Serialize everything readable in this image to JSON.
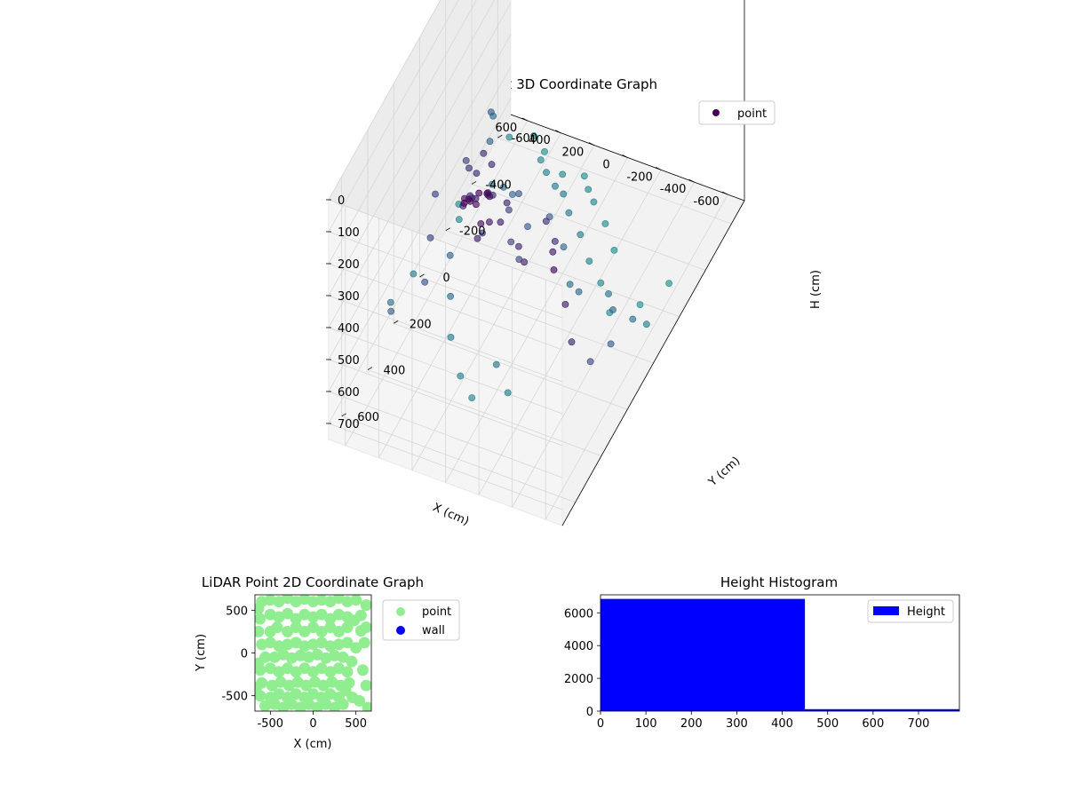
{
  "chart_data": [
    {
      "type": "scatter3d",
      "title": "LiDAR Point 3D Coordinate Graph",
      "xlabel": "X (cm)",
      "ylabel": "Y (cm)",
      "zlabel": "H (cm)",
      "xlim": [
        -700,
        700
      ],
      "ylim": [
        -700,
        700
      ],
      "zlim": [
        750,
        0
      ],
      "xticks": [
        "-600",
        "-400",
        "-200",
        "0",
        "200",
        "400",
        "600"
      ],
      "yticks": [
        "600",
        "400",
        "200",
        "0",
        "-200",
        "-400",
        "-600"
      ],
      "zticks": [
        "0",
        "100",
        "200",
        "300",
        "400",
        "500",
        "600",
        "700"
      ],
      "legend": {
        "position": "upper-right",
        "entries": [
          {
            "name": "point",
            "color": "#440154"
          }
        ]
      },
      "colormap": "viridis",
      "series": [
        {
          "name": "point",
          "points": [
            [
              150,
              250,
              200
            ],
            [
              180,
              280,
              210
            ],
            [
              120,
              220,
              215
            ],
            [
              200,
              300,
              205
            ],
            [
              160,
              260,
              230
            ],
            [
              100,
              300,
              250
            ],
            [
              140,
              180,
              260
            ],
            [
              220,
              240,
              240
            ],
            [
              80,
              260,
              270
            ],
            [
              260,
              220,
              260
            ],
            [
              180,
              150,
              280
            ],
            [
              120,
              300,
              300
            ],
            [
              240,
              160,
              300
            ],
            [
              60,
              200,
              310
            ],
            [
              300,
              180,
              320
            ],
            [
              100,
              100,
              330
            ],
            [
              200,
              80,
              340
            ],
            [
              320,
              100,
              350
            ],
            [
              360,
              0,
              360
            ],
            [
              300,
              -40,
              350
            ],
            [
              380,
              -80,
              360
            ],
            [
              420,
              -20,
              370
            ],
            [
              260,
              40,
              380
            ],
            [
              340,
              60,
              390
            ],
            [
              200,
              160,
              400
            ],
            [
              150,
              20,
              420
            ],
            [
              60,
              120,
              430
            ],
            [
              -20,
              160,
              440
            ],
            [
              -80,
              240,
              330
            ],
            [
              -160,
              300,
              320
            ],
            [
              -120,
              80,
              360
            ],
            [
              -220,
              140,
              360
            ],
            [
              -300,
              260,
              290
            ],
            [
              -400,
              380,
              240
            ],
            [
              -500,
              420,
              300
            ],
            [
              -600,
              500,
              340
            ],
            [
              -650,
              420,
              450
            ],
            [
              -640,
              250,
              520
            ],
            [
              -520,
              80,
              560
            ],
            [
              -600,
              30,
              610
            ],
            [
              -620,
              -50,
              680
            ],
            [
              -400,
              -40,
              620
            ],
            [
              -300,
              60,
              560
            ],
            [
              -200,
              0,
              600
            ],
            [
              -100,
              -80,
              560
            ],
            [
              0,
              -100,
              500
            ],
            [
              100,
              -60,
              520
            ],
            [
              200,
              -120,
              480
            ],
            [
              300,
              -200,
              560
            ],
            [
              400,
              -260,
              600
            ],
            [
              500,
              -300,
              640
            ],
            [
              560,
              -360,
              560
            ],
            [
              600,
              -420,
              520
            ],
            [
              650,
              -500,
              600
            ],
            [
              600,
              -560,
              700
            ],
            [
              500,
              -620,
              720
            ],
            [
              420,
              -600,
              740
            ],
            [
              380,
              -520,
              700
            ],
            [
              300,
              -460,
              680
            ],
            [
              200,
              -400,
              660
            ],
            [
              120,
              -360,
              640
            ],
            [
              40,
              -300,
              640
            ],
            [
              -60,
              -260,
              660
            ],
            [
              -160,
              -200,
              680
            ],
            [
              -260,
              -160,
              700
            ],
            [
              -360,
              -100,
              730
            ],
            [
              -480,
              -180,
              740
            ],
            [
              -560,
              -300,
              745
            ],
            [
              250,
              -520,
              720
            ],
            [
              150,
              -560,
              735
            ],
            [
              80,
              -500,
              720
            ],
            [
              0,
              -440,
              700
            ],
            [
              -100,
              -400,
              720
            ],
            [
              -200,
              -340,
              740
            ],
            [
              500,
              -100,
              420
            ],
            [
              560,
              60,
              420
            ],
            [
              480,
              200,
              440
            ],
            [
              420,
              320,
              480
            ],
            [
              560,
              400,
              540
            ],
            [
              640,
              300,
              600
            ],
            [
              660,
              100,
              660
            ],
            [
              620,
              -200,
              700
            ],
            [
              700,
              -300,
              740
            ],
            [
              440,
              100,
              560
            ],
            [
              360,
              200,
              600
            ],
            [
              280,
              300,
              640
            ],
            [
              160,
              380,
              680
            ],
            [
              60,
              420,
              700
            ],
            [
              -40,
              360,
              620
            ],
            [
              -140,
              400,
              660
            ]
          ]
        }
      ]
    },
    {
      "type": "scatter",
      "title": "LiDAR Point 2D Coordinate Graph",
      "xlabel": "X (cm)",
      "ylabel": "Y (cm)",
      "xlim": [
        -680,
        680
      ],
      "ylim": [
        -680,
        680
      ],
      "xticks": [
        "-500",
        "0",
        "500"
      ],
      "yticks": [
        "500",
        "0",
        "-500"
      ],
      "legend": {
        "position": "outside-right",
        "entries": [
          {
            "name": "point",
            "color": "#90ee90"
          },
          {
            "name": "wall",
            "color": "#0000ff"
          }
        ]
      },
      "series": [
        {
          "name": "point",
          "color": "#90ee90",
          "points": [
            [
              -600,
              600
            ],
            [
              -500,
              620
            ],
            [
              -400,
              600
            ],
            [
              -300,
              640
            ],
            [
              -200,
              600
            ],
            [
              -100,
              630
            ],
            [
              0,
              600
            ],
            [
              100,
              620
            ],
            [
              200,
              600
            ],
            [
              300,
              640
            ],
            [
              400,
              600
            ],
            [
              500,
              620
            ],
            [
              620,
              560
            ],
            [
              -620,
              400
            ],
            [
              -500,
              450
            ],
            [
              -400,
              420
            ],
            [
              -300,
              460
            ],
            [
              -200,
              400
            ],
            [
              -100,
              450
            ],
            [
              0,
              420
            ],
            [
              100,
              450
            ],
            [
              200,
              400
            ],
            [
              300,
              450
            ],
            [
              400,
              420
            ],
            [
              480,
              380
            ],
            [
              560,
              440
            ],
            [
              -640,
              250
            ],
            [
              -500,
              250
            ],
            [
              -420,
              300
            ],
            [
              -300,
              250
            ],
            [
              -200,
              300
            ],
            [
              -100,
              250
            ],
            [
              0,
              300
            ],
            [
              100,
              250
            ],
            [
              200,
              300
            ],
            [
              300,
              250
            ],
            [
              400,
              300
            ],
            [
              -600,
              100
            ],
            [
              -500,
              120
            ],
            [
              -400,
              80
            ],
            [
              -300,
              100
            ],
            [
              -200,
              120
            ],
            [
              -100,
              80
            ],
            [
              0,
              100
            ],
            [
              100,
              120
            ],
            [
              200,
              80
            ],
            [
              300,
              100
            ],
            [
              400,
              120
            ],
            [
              500,
              60
            ],
            [
              -560,
              -50
            ],
            [
              -450,
              -50
            ],
            [
              -350,
              -20
            ],
            [
              -250,
              -60
            ],
            [
              -150,
              -30
            ],
            [
              -50,
              -50
            ],
            [
              50,
              -20
            ],
            [
              150,
              -60
            ],
            [
              250,
              -30
            ],
            [
              350,
              -50
            ],
            [
              450,
              -100
            ],
            [
              -620,
              -200
            ],
            [
              -500,
              -180
            ],
            [
              -400,
              -220
            ],
            [
              -300,
              -180
            ],
            [
              -200,
              -220
            ],
            [
              -100,
              -180
            ],
            [
              0,
              -220
            ],
            [
              100,
              -180
            ],
            [
              200,
              -220
            ],
            [
              300,
              -180
            ],
            [
              400,
              -220
            ],
            [
              -600,
              -350
            ],
            [
              -480,
              -380
            ],
            [
              -380,
              -340
            ],
            [
              -280,
              -380
            ],
            [
              -180,
              -340
            ],
            [
              -80,
              -380
            ],
            [
              20,
              -340
            ],
            [
              120,
              -380
            ],
            [
              220,
              -340
            ],
            [
              320,
              -380
            ],
            [
              420,
              -350
            ],
            [
              -620,
              -500
            ],
            [
              -500,
              -520
            ],
            [
              -400,
              -480
            ],
            [
              -300,
              -520
            ],
            [
              -200,
              -480
            ],
            [
              -100,
              -520
            ],
            [
              0,
              -480
            ],
            [
              100,
              -520
            ],
            [
              200,
              -480
            ],
            [
              300,
              -520
            ],
            [
              380,
              -440
            ],
            [
              460,
              -520
            ],
            [
              -560,
              -620
            ],
            [
              -450,
              -600
            ],
            [
              -350,
              -640
            ],
            [
              -250,
              -600
            ],
            [
              -150,
              -640
            ],
            [
              -50,
              -600
            ],
            [
              50,
              -640
            ],
            [
              150,
              -600
            ],
            [
              250,
              -640
            ],
            [
              350,
              -600
            ],
            [
              -640,
              520
            ],
            [
              -660,
              -400
            ],
            [
              -640,
              -120
            ],
            [
              560,
              260
            ],
            [
              600,
              120
            ],
            [
              580,
              -200
            ],
            [
              620,
              -380
            ],
            [
              540,
              -560
            ],
            [
              640,
              -640
            ],
            [
              620,
              300
            ]
          ]
        },
        {
          "name": "wall",
          "color": "#0000ff",
          "points": []
        }
      ]
    },
    {
      "type": "bar",
      "title": "Height Histogram",
      "xlabel": "",
      "ylabel": "",
      "xlim": [
        0,
        790
      ],
      "ylim": [
        0,
        7100
      ],
      "xticks": [
        "0",
        "100",
        "200",
        "300",
        "400",
        "500",
        "600",
        "700"
      ],
      "yticks": [
        "0",
        "2000",
        "4000",
        "6000"
      ],
      "legend": {
        "position": "upper-right",
        "entries": [
          {
            "name": "Height",
            "color": "#0000ff"
          }
        ]
      },
      "bins": [
        {
          "x0": 0,
          "x1": 450,
          "count": 6850
        },
        {
          "x0": 450,
          "x1": 790,
          "count": 120
        }
      ]
    }
  ]
}
